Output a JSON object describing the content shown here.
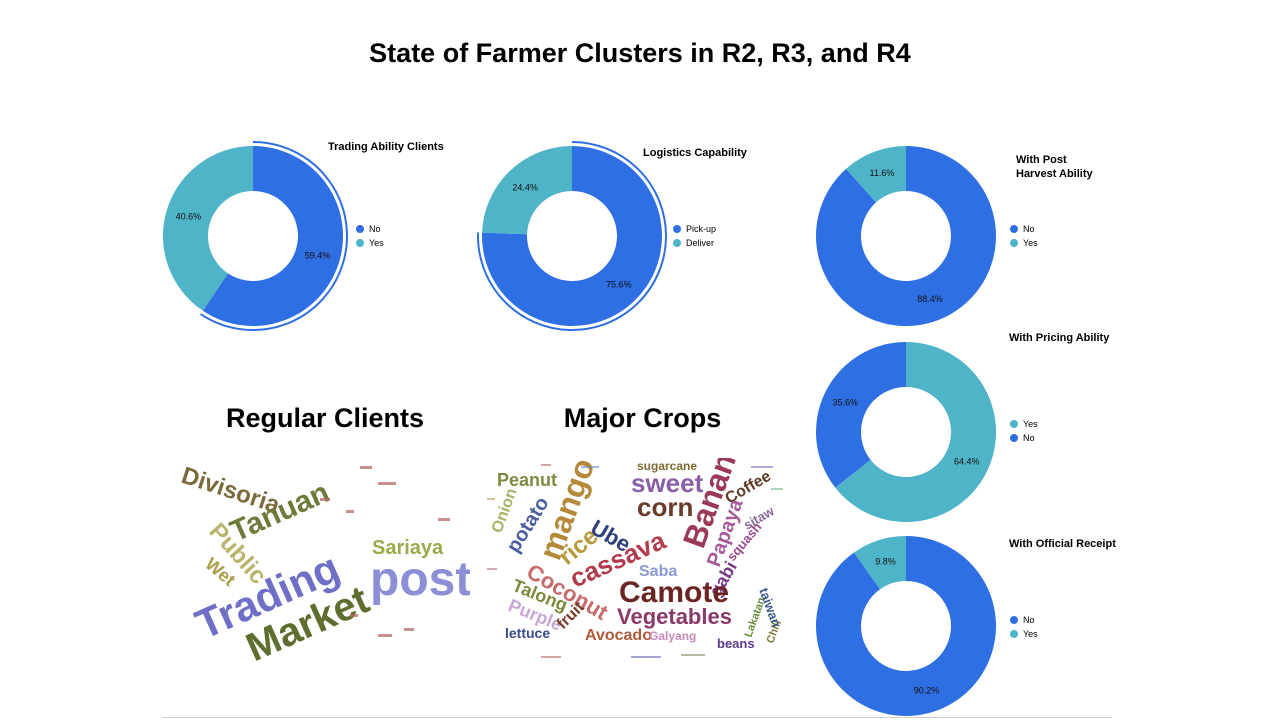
{
  "page": {
    "title": "State of Farmer Clusters in R2, R3, and R4"
  },
  "colors": {
    "blue": "#2f6fe4",
    "teal": "#4fb4c8"
  },
  "chart_data": [
    {
      "type": "pie",
      "title": "Trading Ability Clients",
      "labels": [
        "No",
        "Yes"
      ],
      "values": [
        59.4,
        40.6
      ],
      "display": [
        "59.4%",
        "40.6%"
      ],
      "colors": [
        "#2f6fe4",
        "#4fb4c8"
      ],
      "legend": [
        "No",
        "Yes"
      ],
      "exploded": 0
    },
    {
      "type": "pie",
      "title": "Logistics Capability",
      "labels": [
        "Pick-up",
        "Deliver"
      ],
      "values": [
        75.6,
        24.4
      ],
      "display": [
        "75.6%",
        "24.4%"
      ],
      "colors": [
        "#2f6fe4",
        "#4fb4c8"
      ],
      "legend": [
        "Pick-up",
        "Deliver"
      ],
      "exploded": 0
    },
    {
      "type": "pie",
      "title": "With Post\nHarvest Ability",
      "labels": [
        "No",
        "Yes"
      ],
      "values": [
        88.4,
        11.6
      ],
      "display": [
        "88.4%",
        "11.6%"
      ],
      "colors": [
        "#2f6fe4",
        "#4fb4c8"
      ],
      "legend": [
        "No",
        "Yes"
      ]
    },
    {
      "type": "pie",
      "title": "With Pricing Ability",
      "labels": [
        "Yes",
        "No"
      ],
      "values": [
        64.4,
        35.6
      ],
      "display": [
        "64.4%",
        "35.6%"
      ],
      "colors": [
        "#4fb4c8",
        "#2f6fe4"
      ],
      "legend": [
        "Yes",
        "No"
      ]
    },
    {
      "type": "pie",
      "title": "With Official Receipt",
      "labels": [
        "No",
        "Yes"
      ],
      "values": [
        90.2,
        9.8
      ],
      "display": [
        "90.2%",
        "9.8%"
      ],
      "colors": [
        "#2f6fe4",
        "#4fb4c8"
      ],
      "legend": [
        "No",
        "Yes"
      ]
    }
  ],
  "clients": {
    "title": "Regular Clients",
    "words": [
      {
        "t": "Divisoria",
        "c": "#7a6a3c"
      },
      {
        "t": "Tanuan",
        "c": "#6c7a3a"
      },
      {
        "t": "Public",
        "c": "#b8b46a"
      },
      {
        "t": "Sariaya",
        "c": "#9aa94a"
      },
      {
        "t": "Wet",
        "c": "#a8a046"
      },
      {
        "t": "Trading",
        "c": "#6f6fc8"
      },
      {
        "t": "post",
        "c": "#8d8fd6"
      },
      {
        "t": "Market",
        "c": "#5f6d2e"
      }
    ]
  },
  "crops": {
    "title": "Major Crops",
    "words": [
      {
        "t": "Peanut",
        "c": "#7d8a3f"
      },
      {
        "t": "mango",
        "c": "#b48a3a"
      },
      {
        "t": "sweet",
        "c": "#8a5fa8"
      },
      {
        "t": "corn",
        "c": "#6b3a2a"
      },
      {
        "t": "Banana",
        "c": "#9b3a57"
      },
      {
        "t": "sugarcane",
        "c": "#7e6a2e"
      },
      {
        "t": "Coffee",
        "c": "#5e3a28"
      },
      {
        "t": "Onion",
        "c": "#a9b466"
      },
      {
        "t": "potato",
        "c": "#4a5ea0"
      },
      {
        "t": "rice",
        "c": "#b89a3a"
      },
      {
        "t": "Ube",
        "c": "#2e3f7a"
      },
      {
        "t": "Papaya",
        "c": "#a85a9a"
      },
      {
        "t": "sitaw",
        "c": "#8a6a9a"
      },
      {
        "t": "squash",
        "c": "#9a4a8a"
      },
      {
        "t": "cassava",
        "c": "#b23a4a"
      },
      {
        "t": "gabi",
        "c": "#7a3a8a"
      },
      {
        "t": "Saba",
        "c": "#8a9ad6"
      },
      {
        "t": "Coconut",
        "c": "#c86a6a"
      },
      {
        "t": "Camote",
        "c": "#6b2424"
      },
      {
        "t": "Talong",
        "c": "#7a8a3a"
      },
      {
        "t": "Vegetables",
        "c": "#8a3a6a"
      },
      {
        "t": "Purple",
        "c": "#c8a8d8"
      },
      {
        "t": "fruit",
        "c": "#7a3a2a"
      },
      {
        "t": "Avocado",
        "c": "#b05a3a"
      },
      {
        "t": "Galyang",
        "c": "#c88ab8"
      },
      {
        "t": "lettuce",
        "c": "#3a4a8a"
      },
      {
        "t": "beans",
        "c": "#5a3a8a"
      },
      {
        "t": "Lakatan",
        "c": "#6a8a3a"
      },
      {
        "t": "Chili",
        "c": "#7a7a3a"
      },
      {
        "t": "taiwan",
        "c": "#3a5a8a"
      }
    ]
  }
}
